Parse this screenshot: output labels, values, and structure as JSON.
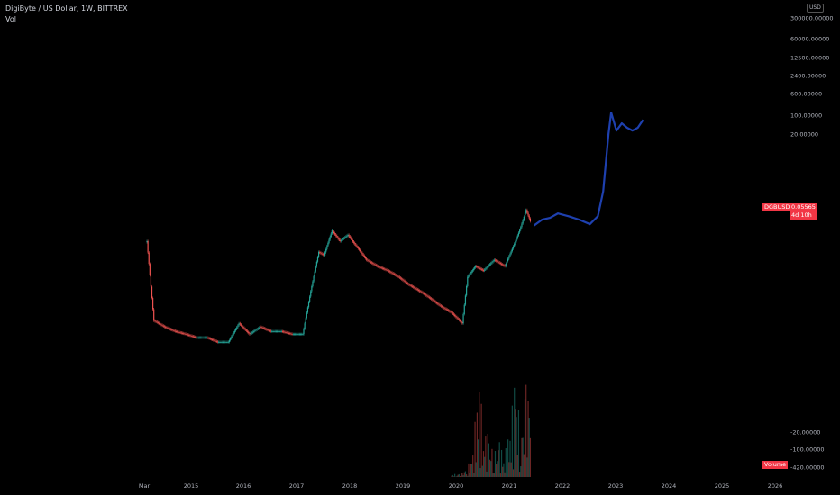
{
  "header": {
    "symbol_line": "DigiByte / US Dollar, 1W, BITTREX",
    "indicator": "Vol"
  },
  "price_axis": {
    "currency_badge": "USD",
    "ticks": [
      "300000.00000",
      "60000.00000",
      "12500.00000",
      "2400.00000",
      "600.00000",
      "100.00000",
      "20.00000"
    ],
    "scale": "log"
  },
  "volume_axis": {
    "ticks": [
      "-20.00000",
      "-100.00000",
      "-420.00000"
    ]
  },
  "price_tag": {
    "symbol": "DGBUSD",
    "price": "0.05565",
    "countdown": "4d 10h",
    "color": "#f23645"
  },
  "volume_tag": {
    "label": "Volume",
    "color": "#f23645"
  },
  "time_axis": {
    "labels": [
      "Mar",
      "2015",
      "2016",
      "2017",
      "2018",
      "2019",
      "2020",
      "2021",
      "2022",
      "2023",
      "2024",
      "2025",
      "2026"
    ]
  },
  "colors": {
    "up": "#26a69a",
    "down": "#ef5350",
    "projection": "#1e40af",
    "background": "#000000"
  },
  "chart_data": {
    "type": "line",
    "title": "DigiByte / US Dollar, 1W, BITTREX",
    "x_unit": "year",
    "y_scale": "log",
    "series": [
      {
        "kind": "candles",
        "x": [
          2014.17,
          2014.3,
          2014.5,
          2014.7,
          2014.9,
          2015.1,
          2015.3,
          2015.5,
          2015.7,
          2015.9,
          2016.1,
          2016.3,
          2016.5,
          2016.7,
          2016.9,
          2017.1,
          2017.25,
          2017.4,
          2017.5,
          2017.65,
          2017.8,
          2017.95,
          2018.1,
          2018.3,
          2018.5,
          2018.7,
          2018.9,
          2019.1,
          2019.3,
          2019.5,
          2019.7,
          2019.9,
          2020.1,
          2020.2,
          2020.35,
          2020.5,
          2020.7,
          2020.9,
          2021.1,
          2021.2,
          2021.3,
          2021.4
        ],
        "y": [
          0.02,
          0.00012,
          8e-05,
          6e-05,
          5e-05,
          4e-05,
          4e-05,
          3e-05,
          3e-05,
          0.0001,
          5e-05,
          8e-05,
          6e-05,
          6e-05,
          5e-05,
          5e-05,
          0.0008,
          0.01,
          0.008,
          0.04,
          0.02,
          0.03,
          0.015,
          0.006,
          0.004,
          0.003,
          0.002,
          0.0012,
          0.0008,
          0.0005,
          0.0003,
          0.0002,
          0.0001,
          0.002,
          0.004,
          0.003,
          0.006,
          0.004,
          0.02,
          0.05,
          0.15,
          0.06
        ]
      },
      {
        "kind": "projection",
        "x": [
          2021.45,
          2021.6,
          2021.75,
          2021.9,
          2022.1,
          2022.3,
          2022.5,
          2022.65,
          2022.75,
          2022.85,
          2022.9,
          2023.0,
          2023.1,
          2023.2,
          2023.3,
          2023.4,
          2023.5
        ],
        "y": [
          0.055,
          0.08,
          0.09,
          0.12,
          0.1,
          0.08,
          0.06,
          0.1,
          0.5,
          20,
          80,
          25,
          40,
          30,
          25,
          30,
          50
        ]
      }
    ],
    "volume": {
      "x": [
        2019.9,
        2020.0,
        2020.1,
        2020.2,
        2020.3,
        2020.4,
        2020.5,
        2020.6,
        2020.7,
        2020.8,
        2020.9,
        2021.0,
        2021.1,
        2021.2,
        2021.3,
        2021.4
      ],
      "values": [
        40,
        60,
        80,
        200,
        400,
        1800,
        900,
        700,
        500,
        600,
        400,
        900,
        1800,
        800,
        1600,
        2000
      ]
    }
  }
}
